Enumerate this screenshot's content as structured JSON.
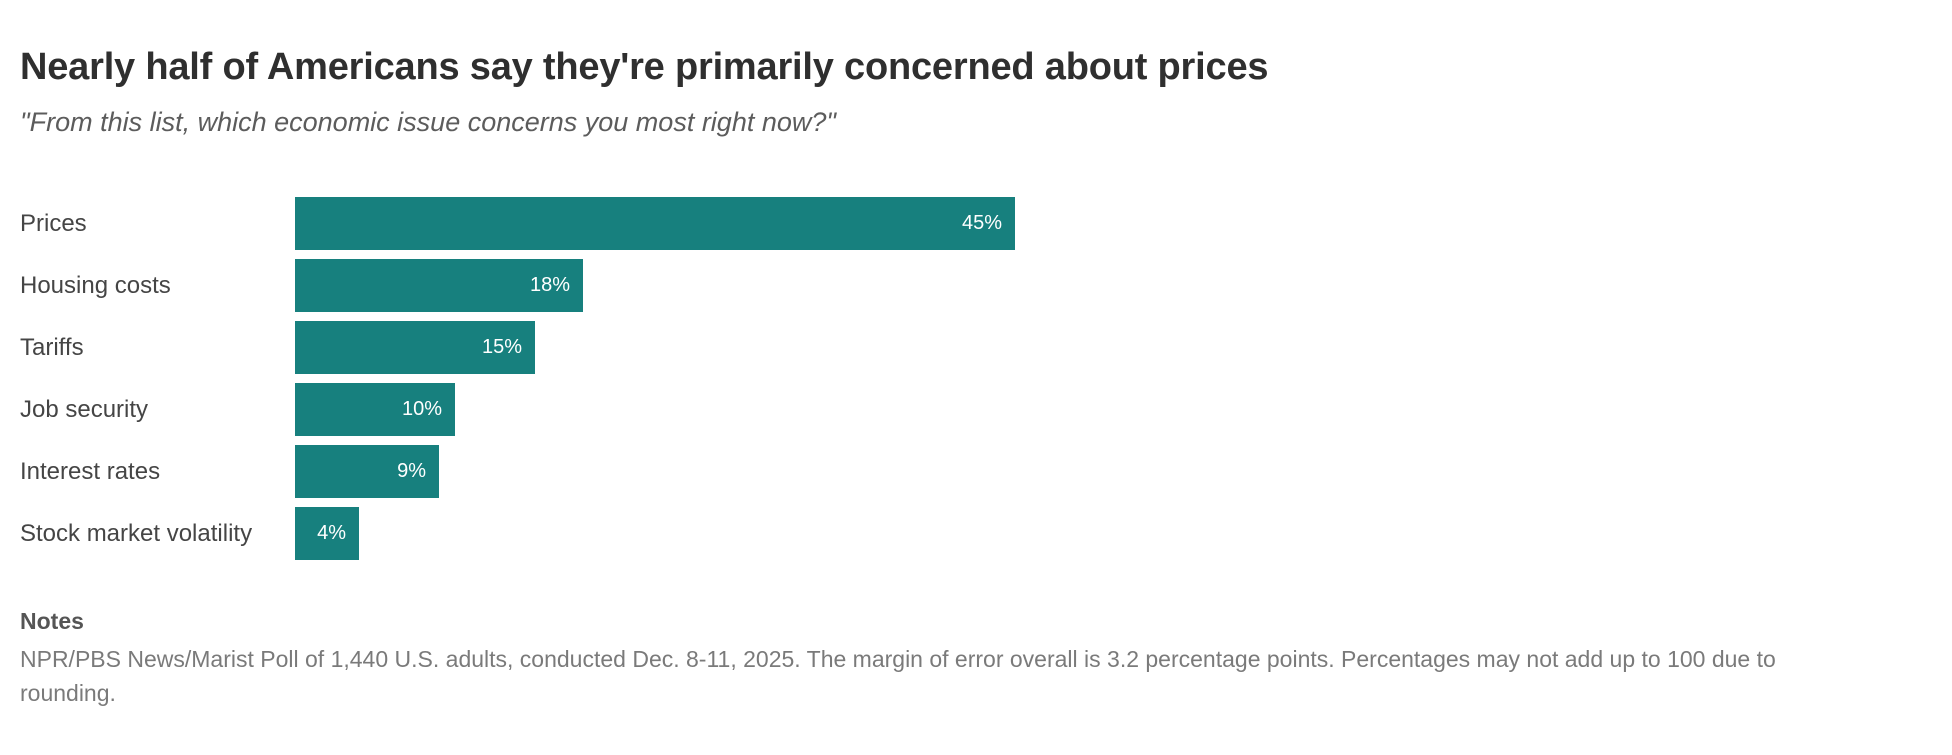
{
  "header": {
    "title": "Nearly half of Americans say they're primarily concerned about prices",
    "subtitle": "\"From this list, which economic issue concerns you most right now?\""
  },
  "chart_data": {
    "type": "bar",
    "orientation": "horizontal",
    "title": "Nearly half of Americans say they're primarily concerned about prices",
    "subtitle": "\"From this list, which economic issue concerns you most right now?\"",
    "categories": [
      "Prices",
      "Housing costs",
      "Tariffs",
      "Job security",
      "Interest rates",
      "Stock market volatility"
    ],
    "values": [
      45,
      18,
      15,
      10,
      9,
      4
    ],
    "value_labels": [
      "45%",
      "18%",
      "15%",
      "10%",
      "9%",
      "4%"
    ],
    "xlabel": "",
    "ylabel": "",
    "xlim": [
      0,
      45
    ],
    "grid": false,
    "legend": false,
    "bar_color": "#17807e",
    "value_label_color": "#ffffff",
    "value_label_position": "inside-right"
  },
  "notes": {
    "heading": "Notes",
    "body": "NPR/PBS News/Marist Poll of 1,440 U.S. adults, conducted Dec. 8-11, 2025. The margin of error overall is 3.2 percentage points. Percentages may not add up to 100 due to rounding."
  }
}
